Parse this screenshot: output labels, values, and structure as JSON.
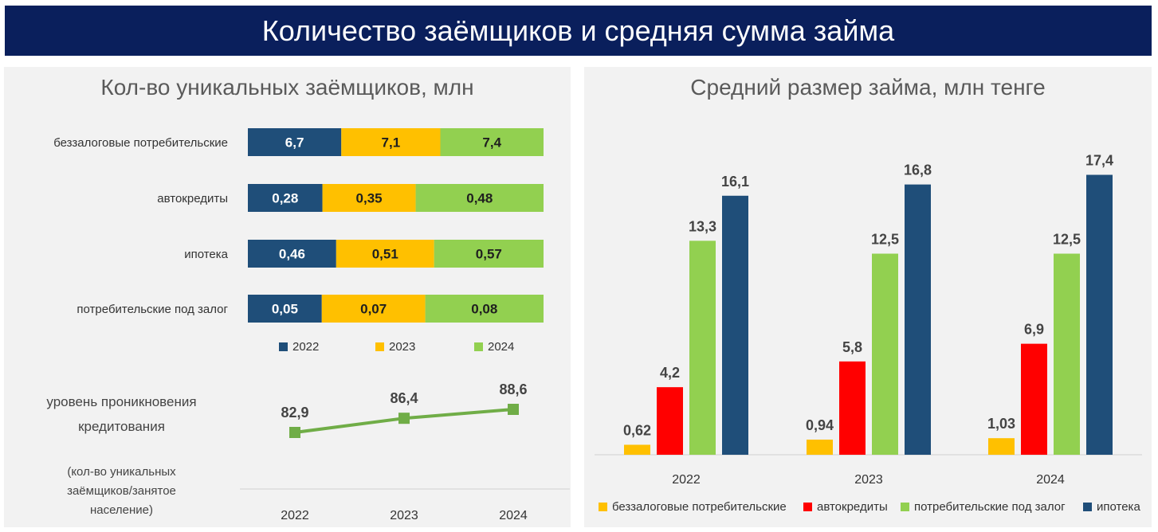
{
  "title": "Количество заёмщиков и средняя сумма займа",
  "colors": {
    "y2022": "#1f4e79",
    "y2023": "#ffc000",
    "y2024": "#92d050",
    "red": "#ff0000",
    "banner": "#0a1f5c"
  },
  "left": {
    "title": "Кол-во уникальных заёмщиков, млн",
    "penetration_label": "уровень проникновения кредитования",
    "penetration_note": "(кол-во уникальных заёмщиков/занятое население)"
  },
  "right": {
    "title": "Средний размер займа, млн тенге"
  },
  "chart_data": [
    {
      "type": "bar",
      "orientation": "horizontal",
      "stacked": true,
      "title": "Кол-во уникальных заёмщиков, млн",
      "categories": [
        "беззалоговые потребительские",
        "автокредиты",
        "ипотека",
        "потребительские под залог"
      ],
      "series": [
        {
          "name": "2022",
          "color": "#1f4e79",
          "values": [
            6.7,
            0.28,
            0.46,
            0.05
          ],
          "labels": [
            "6,7",
            "0,28",
            "0,46",
            "0,05"
          ]
        },
        {
          "name": "2023",
          "color": "#ffc000",
          "values": [
            7.1,
            0.35,
            0.51,
            0.07
          ],
          "labels": [
            "7,1",
            "0,35",
            "0,51",
            "0,07"
          ]
        },
        {
          "name": "2024",
          "color": "#92d050",
          "values": [
            7.4,
            0.48,
            0.57,
            0.08
          ],
          "labels": [
            "7,4",
            "0,48",
            "0,57",
            "0,08"
          ]
        }
      ],
      "normalized": true,
      "legend": "bottom"
    },
    {
      "type": "line",
      "title": "уровень проникновения кредитования",
      "x": [
        "2022",
        "2023",
        "2024"
      ],
      "values": [
        82.9,
        86.4,
        88.6
      ],
      "labels": [
        "82,9",
        "86,4",
        "88,6"
      ],
      "color": "#70ad47"
    },
    {
      "type": "bar",
      "title": "Средний размер займа, млн тенге",
      "categories": [
        "2022",
        "2023",
        "2024"
      ],
      "series": [
        {
          "name": "беззалоговые потребительские",
          "color": "#ffc000",
          "values": [
            0.62,
            0.94,
            1.03
          ],
          "labels": [
            "0,62",
            "0,94",
            "1,03"
          ]
        },
        {
          "name": "автокредиты",
          "color": "#ff0000",
          "values": [
            4.2,
            5.8,
            6.9
          ],
          "labels": [
            "4,2",
            "5,8",
            "6,9"
          ]
        },
        {
          "name": "потребительские под залог",
          "color": "#92d050",
          "values": [
            13.3,
            12.5,
            12.5
          ],
          "labels": [
            "13,3",
            "12,5",
            "12,5"
          ]
        },
        {
          "name": "ипотека",
          "color": "#1f4e79",
          "values": [
            16.1,
            16.8,
            17.4
          ],
          "labels": [
            "16,1",
            "16,8",
            "17,4"
          ]
        }
      ],
      "ylim": [
        0,
        20
      ],
      "legend": "bottom"
    }
  ]
}
